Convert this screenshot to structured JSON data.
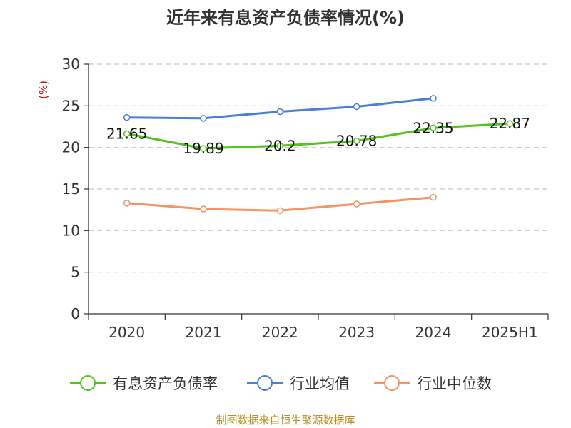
{
  "chart_data": {
    "type": "line",
    "title": "近年来有息资产负债率情况(%)",
    "ylabel": "(%)",
    "categories": [
      "2020",
      "2021",
      "2022",
      "2023",
      "2024",
      "2025H1"
    ],
    "yticks": [
      "0",
      "5",
      "10",
      "15",
      "20",
      "25",
      "30"
    ],
    "ylim": [
      0,
      30
    ],
    "grid": true,
    "legend_position": "bottom",
    "series": [
      {
        "name": "有息资产负债率",
        "color": "#52c41a",
        "values": [
          21.65,
          19.89,
          20.2,
          20.78,
          22.35,
          22.87
        ],
        "labels": [
          "21.65",
          "19.89",
          "20.2",
          "20.78",
          "22.35",
          "22.87"
        ]
      },
      {
        "name": "行业均值",
        "color": "#4a7fd6",
        "values": [
          23.6,
          23.5,
          24.3,
          24.9,
          25.9,
          null
        ]
      },
      {
        "name": "行业中位数",
        "color": "#f79263",
        "values": [
          13.3,
          12.6,
          12.4,
          13.2,
          14.0,
          null
        ]
      }
    ],
    "source": "制图数据来自恒生聚源数据库"
  }
}
